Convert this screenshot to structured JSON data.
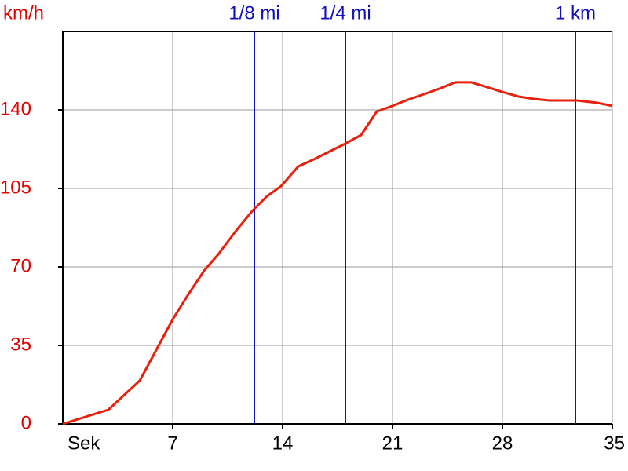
{
  "chart_data": {
    "type": "line",
    "y_label": "km/h",
    "x_label": "Sek",
    "x": [
      0,
      2.9,
      4.9,
      7,
      8,
      9,
      9.9,
      11,
      12.1,
      13,
      13.9,
      15,
      16,
      17,
      18,
      19,
      20,
      21,
      22,
      23,
      24,
      25,
      26,
      27,
      28,
      29,
      30,
      31,
      32.75,
      34,
      35
    ],
    "series": [
      {
        "color": "#e8200c",
        "values": [
          0,
          6.3,
          19.3,
          46.6,
          57.8,
          68.3,
          75.6,
          85.8,
          95.2,
          101.5,
          106,
          114.8,
          118,
          121.5,
          125,
          128.8,
          139.3,
          141.8,
          144.6,
          147,
          149.5,
          152.3,
          152.3,
          150.2,
          148,
          146,
          144.9,
          144.2,
          144.2,
          143.2,
          141.8
        ]
      }
    ],
    "xlim": [
      0,
      35
    ],
    "xticks": [
      7,
      14,
      21,
      28,
      35
    ],
    "ylim": [
      0,
      175
    ],
    "yticks": [
      0,
      35,
      70,
      105,
      140
    ],
    "grid": true,
    "markers": [
      {
        "label": "1/8 mi",
        "x": 12.2
      },
      {
        "label": "1/4 mi",
        "x": 18
      },
      {
        "label": "1 km",
        "x": 32.65
      }
    ],
    "marker_color": "#1010c0",
    "axis_label_color": "#e00000"
  }
}
